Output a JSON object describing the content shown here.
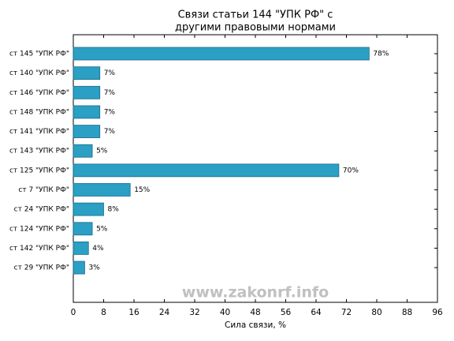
{
  "chart_data": {
    "type": "barh",
    "title": [
      "Связи статьи 144 \"УПК РФ\" с",
      "другими правовыми нормами"
    ],
    "xlabel": "Сила связи, %",
    "watermark": "www.zakonrf.info",
    "categories": [
      "ст 145 \"УПК РФ\"",
      "ст 140 \"УПК РФ\"",
      "ст 146 \"УПК РФ\"",
      "ст 148 \"УПК РФ\"",
      "ст 141 \"УПК РФ\"",
      "ст 143 \"УПК РФ\"",
      "ст 125 \"УПК РФ\"",
      "ст 7 \"УПК РФ\"",
      "ст 24 \"УПК РФ\"",
      "ст 124 \"УПК РФ\"",
      "ст 142 \"УПК РФ\"",
      "ст 29 \"УПК РФ\""
    ],
    "values": [
      78,
      7,
      7,
      7,
      7,
      5,
      70,
      15,
      8,
      5,
      4,
      3
    ],
    "value_labels": [
      "78%",
      "7%",
      "7%",
      "7%",
      "7%",
      "5%",
      "70%",
      "15%",
      "8%",
      "5%",
      "4%",
      "3%"
    ],
    "color": "#2b9fc4",
    "xlim": [
      0,
      96
    ],
    "xticks": [
      0,
      8,
      16,
      24,
      32,
      40,
      48,
      56,
      64,
      72,
      80,
      88,
      96
    ],
    "grid": false
  }
}
